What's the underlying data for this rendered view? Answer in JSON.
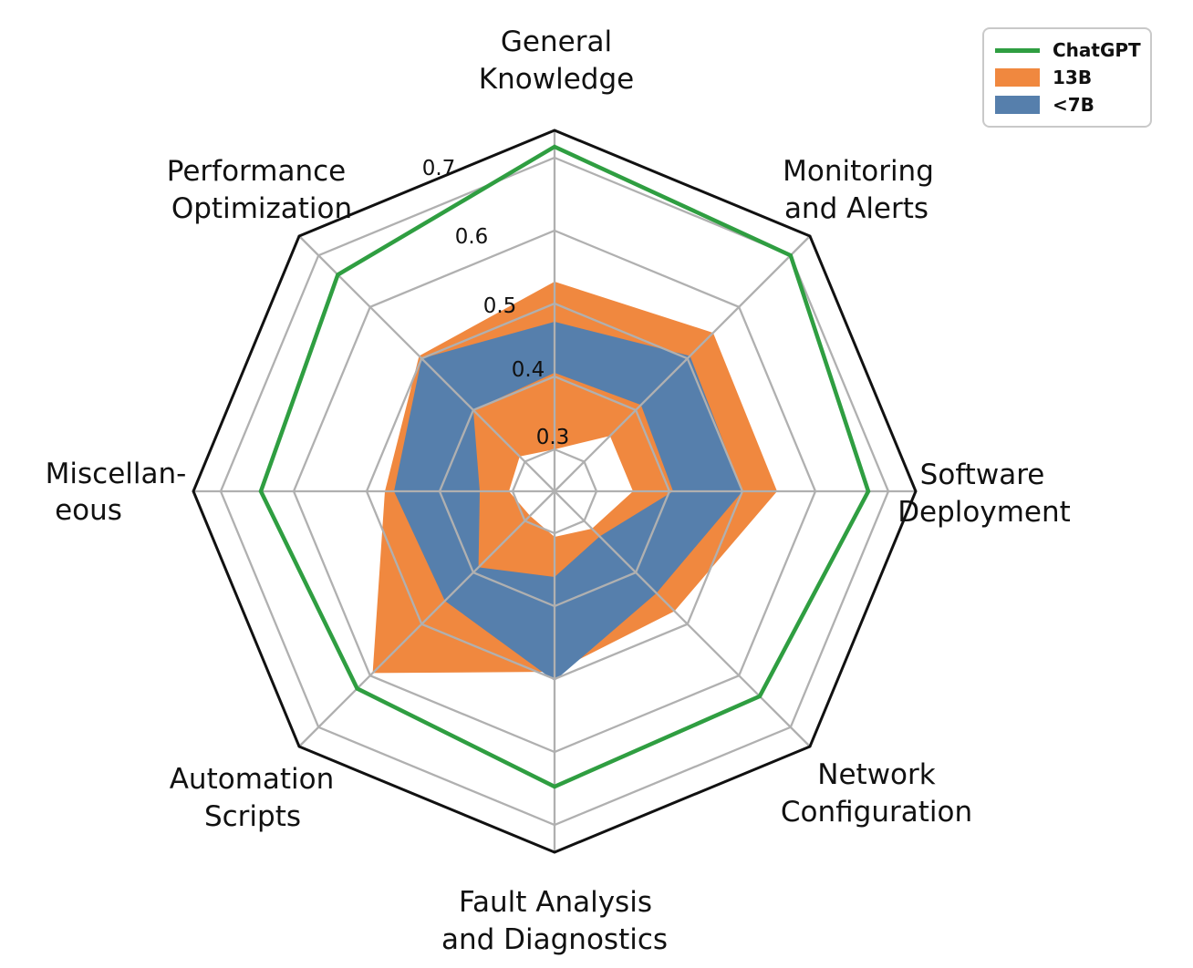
{
  "figure": {
    "background": "#ffffff"
  },
  "legend": {
    "items": [
      {
        "label": "ChatGPT",
        "type": "line",
        "color": "#2f9e41"
      },
      {
        "label": "13B",
        "type": "patch",
        "color": "#f0883f"
      },
      {
        "label": "<7B",
        "type": "patch",
        "color": "#567fac"
      }
    ]
  },
  "chart_data": {
    "type": "radar",
    "title": "",
    "categories": [
      "General Knowledge",
      "Monitoring and Alerts",
      "Software Deployment",
      "Network Configuration",
      "Fault Analysis and Diagnostics",
      "Automation Scripts",
      "Miscellaneous",
      "Performance Optimization"
    ],
    "axis_label_lines": [
      [
        "General",
        "Knowledge"
      ],
      [
        "Monitoring",
        "and Alerts"
      ],
      [
        "Software",
        "Deployment"
      ],
      [
        "Network",
        "Configuration"
      ],
      [
        "Fault Analysis",
        "and Diagnostics"
      ],
      [
        "Automation",
        "Scripts"
      ],
      [
        "Miscellan-",
        "eous"
      ],
      [
        "Performance",
        "Optimization"
      ]
    ],
    "angles_deg": [
      90,
      45,
      0,
      -45,
      -90,
      -135,
      180,
      135
    ],
    "r_axis": {
      "min": 0.2425,
      "max": 0.7375,
      "ticks": [
        0.3,
        0.4,
        0.5,
        0.6,
        0.7
      ],
      "tick_labels": [
        "0.3",
        "0.4",
        "0.5",
        "0.6",
        "0.7"
      ]
    },
    "grid_color": "#b0b0b0",
    "outline_color": "#111111",
    "legend_position": "upper right",
    "series": [
      {
        "name": "ChatGPT",
        "style": "line",
        "color": "#2f9e41",
        "values": [
          0.715,
          0.7,
          0.6725,
          0.64,
          0.6475,
          0.625,
          0.645,
          0.6625
        ]
      },
      {
        "name": "13B",
        "style": "band",
        "color": "#f0883f",
        "upper": [
          0.53,
          0.55,
          0.5475,
          0.475,
          0.49,
          0.595,
          0.475,
          0.505
        ],
        "lower": [
          0.3,
          0.35,
          0.35,
          0.315,
          0.305,
          0.29,
          0.305,
          0.31
        ]
      },
      {
        "name": "<7B",
        "style": "band",
        "color": "#567fac",
        "upper": [
          0.475,
          0.505,
          0.5,
          0.44,
          0.5025,
          0.455,
          0.4625,
          0.5
        ],
        "lower": [
          0.405,
          0.41,
          0.405,
          0.33,
          0.36,
          0.39,
          0.345,
          0.4
        ]
      }
    ]
  }
}
